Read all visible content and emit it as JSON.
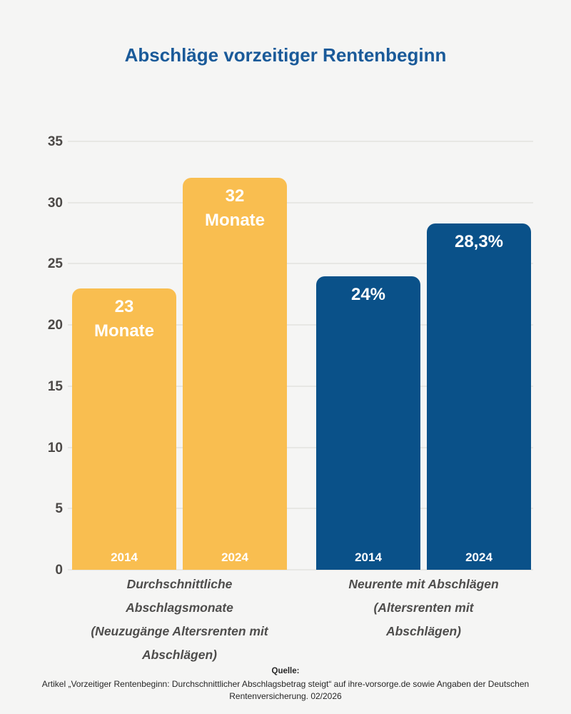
{
  "title": "Abschläge vorzeitiger Rentenbeginn",
  "colors": {
    "background": "#f5f5f4",
    "title": "#1a5a99",
    "gridline": "#e7e7e4",
    "axis_label": "#4c4947",
    "group_label": "#4e4d4c",
    "bar_yellow": "#f9be50",
    "bar_blue": "#0a5189",
    "bar_text": "#ffffff"
  },
  "chart_data": {
    "type": "bar",
    "title": "Abschläge vorzeitiger Rentenbeginn",
    "xlabel": "",
    "ylabel": "",
    "ylim": [
      0,
      35
    ],
    "y_ticks": [
      0,
      5,
      10,
      15,
      20,
      25,
      30,
      35
    ],
    "grid": true,
    "legend": false,
    "groups": [
      {
        "label": "Durchschnittliche Abschlagsmonate (Neuzugänge Altersrenten mit Abschlägen)",
        "label_lines": [
          "Durchschnittliche",
          "Abschlagsmonate",
          "(Neuzugänge Altersrenten mit",
          "Abschlägen)"
        ],
        "color": "#f9be50",
        "bars": [
          {
            "year": "2014",
            "value": 23,
            "value_label_lines": [
              "23",
              "Monate"
            ]
          },
          {
            "year": "2024",
            "value": 32,
            "value_label_lines": [
              "32",
              "Monate"
            ]
          }
        ]
      },
      {
        "label": "Neurente mit Abschlägen (Altersrenten mit Abschlägen)",
        "label_lines": [
          "Neurente mit Abschlägen",
          "(Altersrenten mit",
          "Abschlägen)"
        ],
        "color": "#0a5189",
        "bars": [
          {
            "year": "2014",
            "value": 24,
            "value_label_lines": [
              "24%"
            ]
          },
          {
            "year": "2024",
            "value": 28.3,
            "value_label_lines": [
              "28,3%"
            ]
          }
        ]
      }
    ]
  },
  "source": {
    "heading": "Quelle:",
    "text": "Artikel „Vorzeitiger Rentenbeginn: Durchschnittlicher Abschlagsbetrag steigt“ auf ihre-vorsorge.de sowie Angaben der Deutschen Rentenversicherung. 02/2026"
  }
}
